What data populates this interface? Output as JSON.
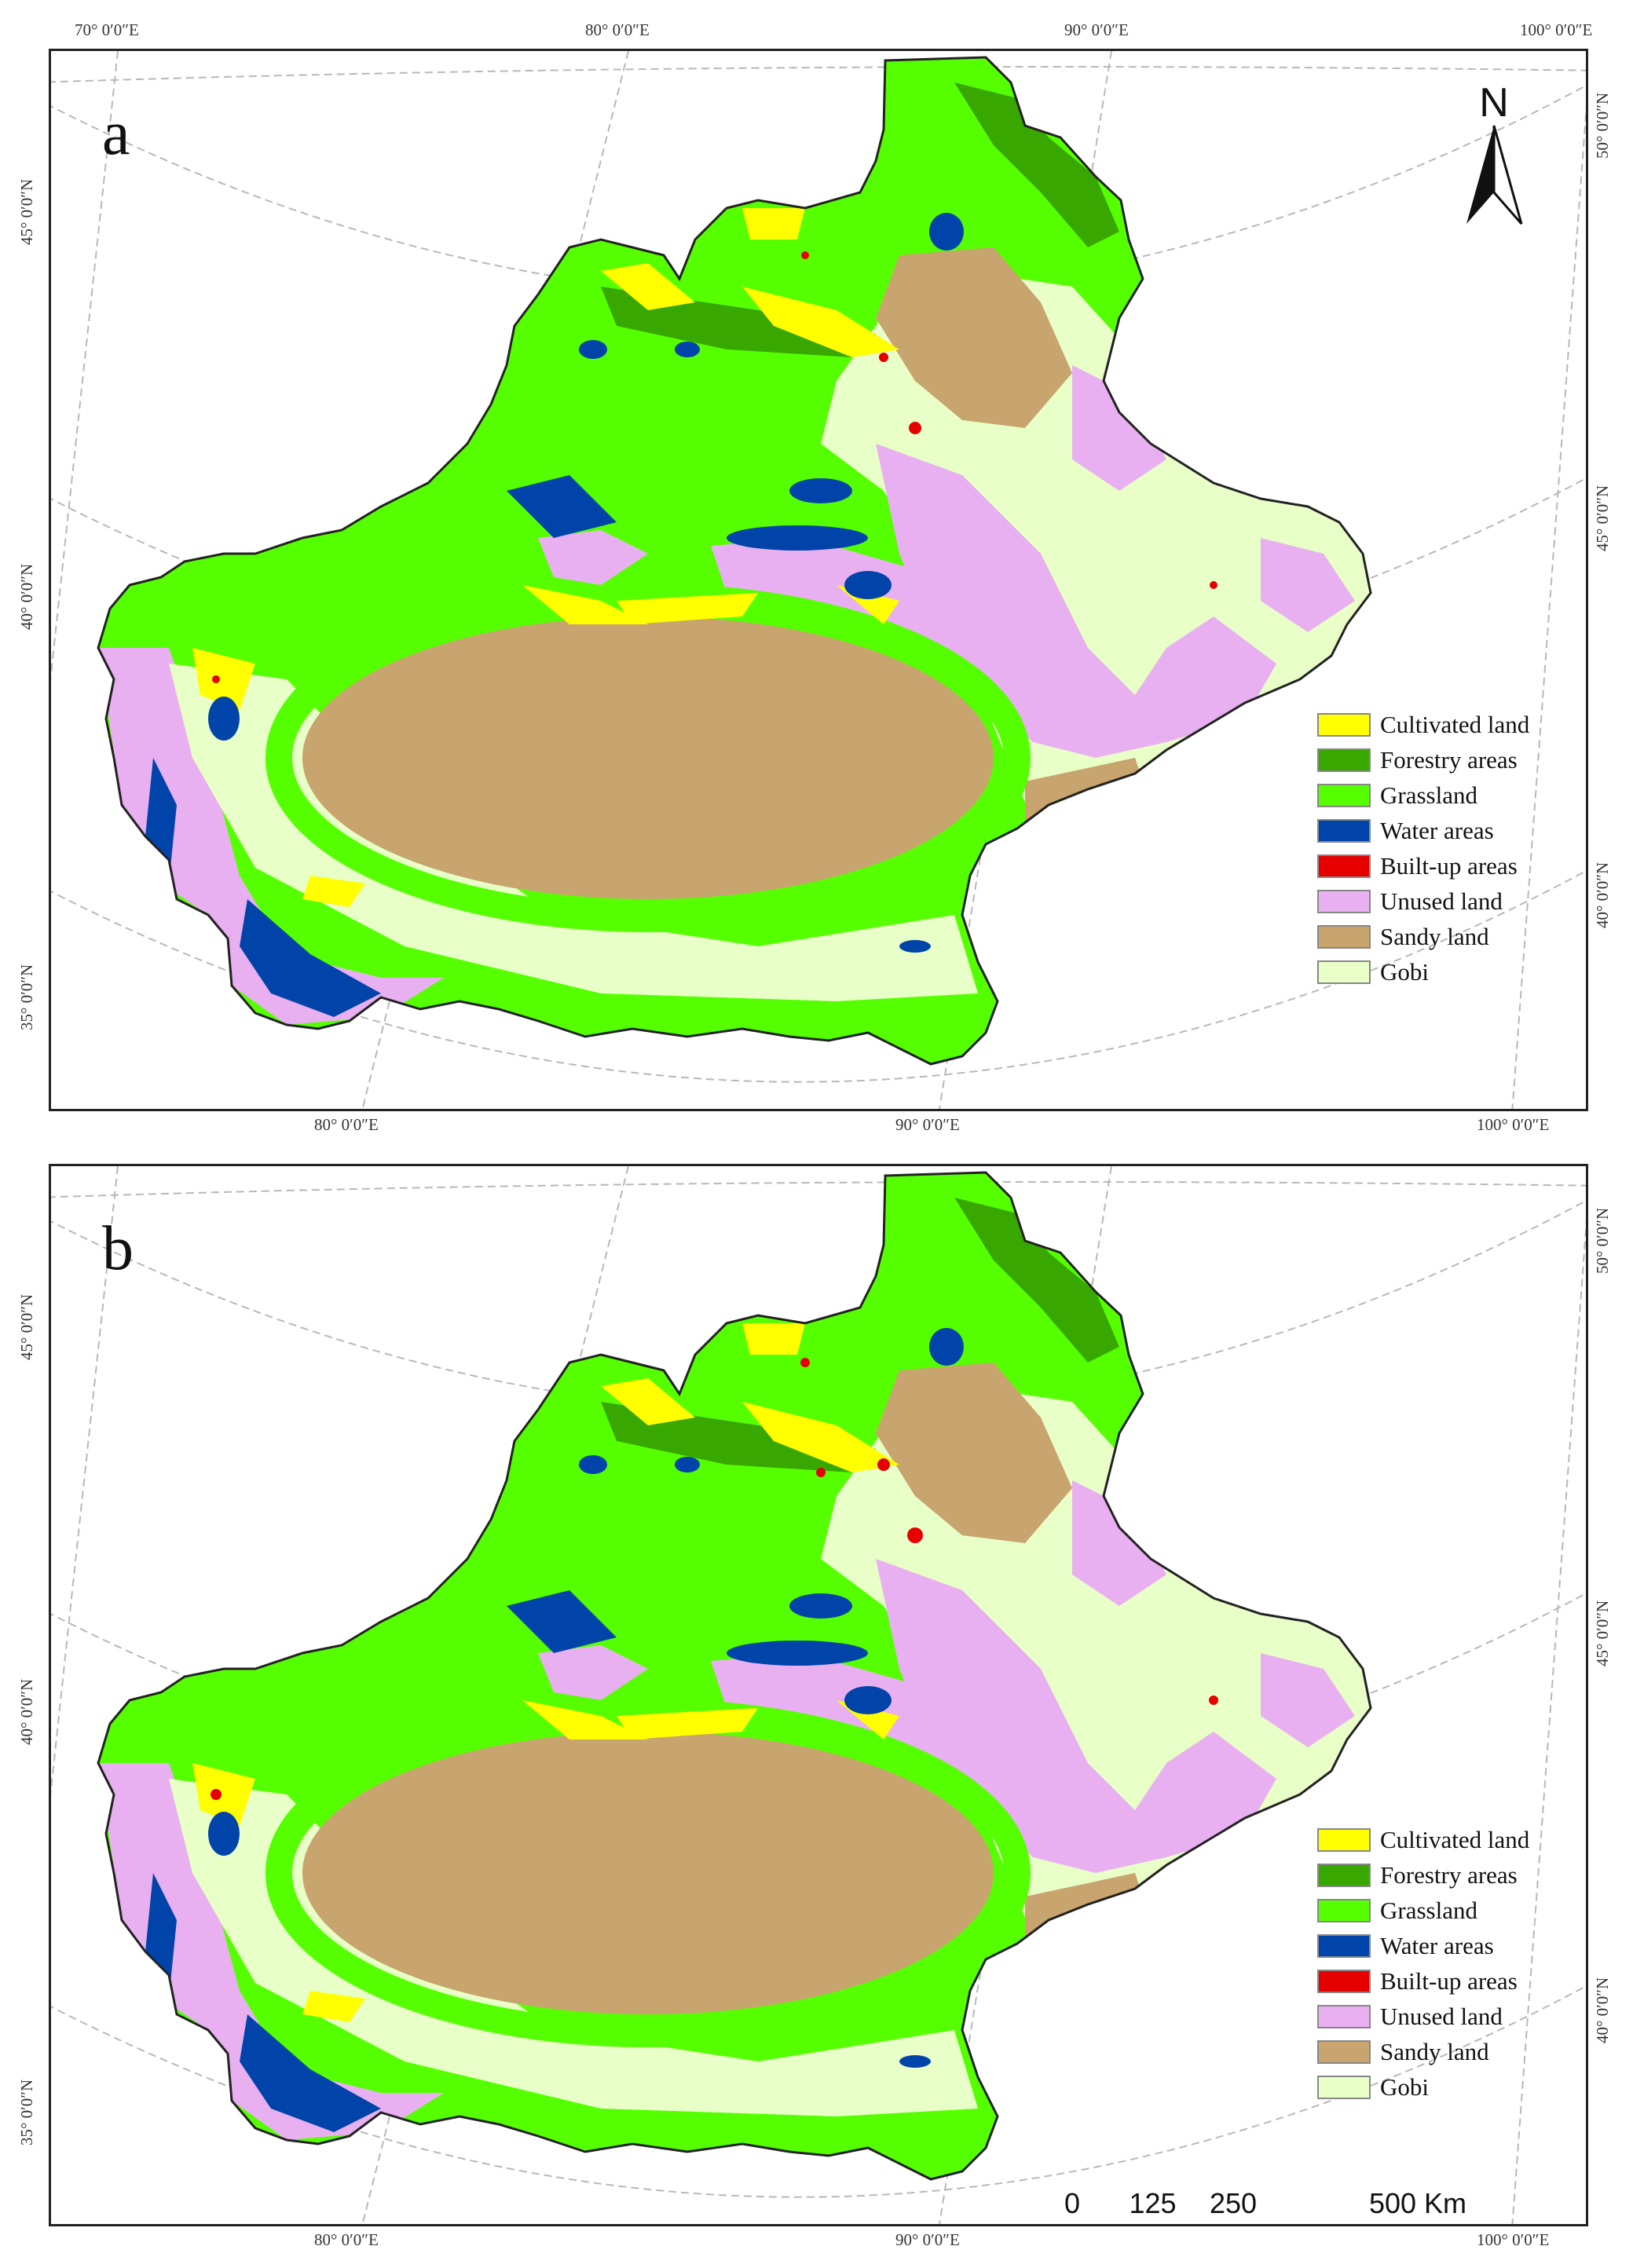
{
  "panels": [
    {
      "id": "a",
      "letter": "a"
    },
    {
      "id": "b",
      "letter": "b"
    }
  ],
  "graticule": {
    "top_lon_labels": [
      "70° 0′0″E",
      "80° 0′0″E",
      "90° 0′0″E",
      "100° 0′0″E"
    ],
    "bottom_lon_labels": [
      "80° 0′0″E",
      "90° 0′0″E",
      "100° 0′0″E"
    ],
    "left_lat_labels": [
      "45° 0′0″N",
      "40° 0′0″N",
      "35° 0′0″N"
    ],
    "right_lat_labels": [
      "50° 0′0″N",
      "45° 0′0″N",
      "40° 0′0″N"
    ]
  },
  "legend": [
    {
      "label": "Cultivated land",
      "color": "#ffff00"
    },
    {
      "label": " Forestry areas",
      "color": "#38a800"
    },
    {
      "label": "Grassland",
      "color": "#55ff00"
    },
    {
      "label": "Water areas",
      "color": "#0044aa"
    },
    {
      "label": "Built-up areas",
      "color": "#e60000"
    },
    {
      "label": "Unused land",
      "color": "#e8b0f0"
    },
    {
      "label": "Sandy land",
      "color": "#c8a46e"
    },
    {
      "label": "Gobi",
      "color": "#e8ffc8"
    }
  ],
  "north_arrow": {
    "label": "N"
  },
  "scale_bar": {
    "labels": [
      "0",
      "125",
      "250",
      "500 Km"
    ],
    "distances_km": [
      0,
      125,
      250,
      500
    ]
  }
}
